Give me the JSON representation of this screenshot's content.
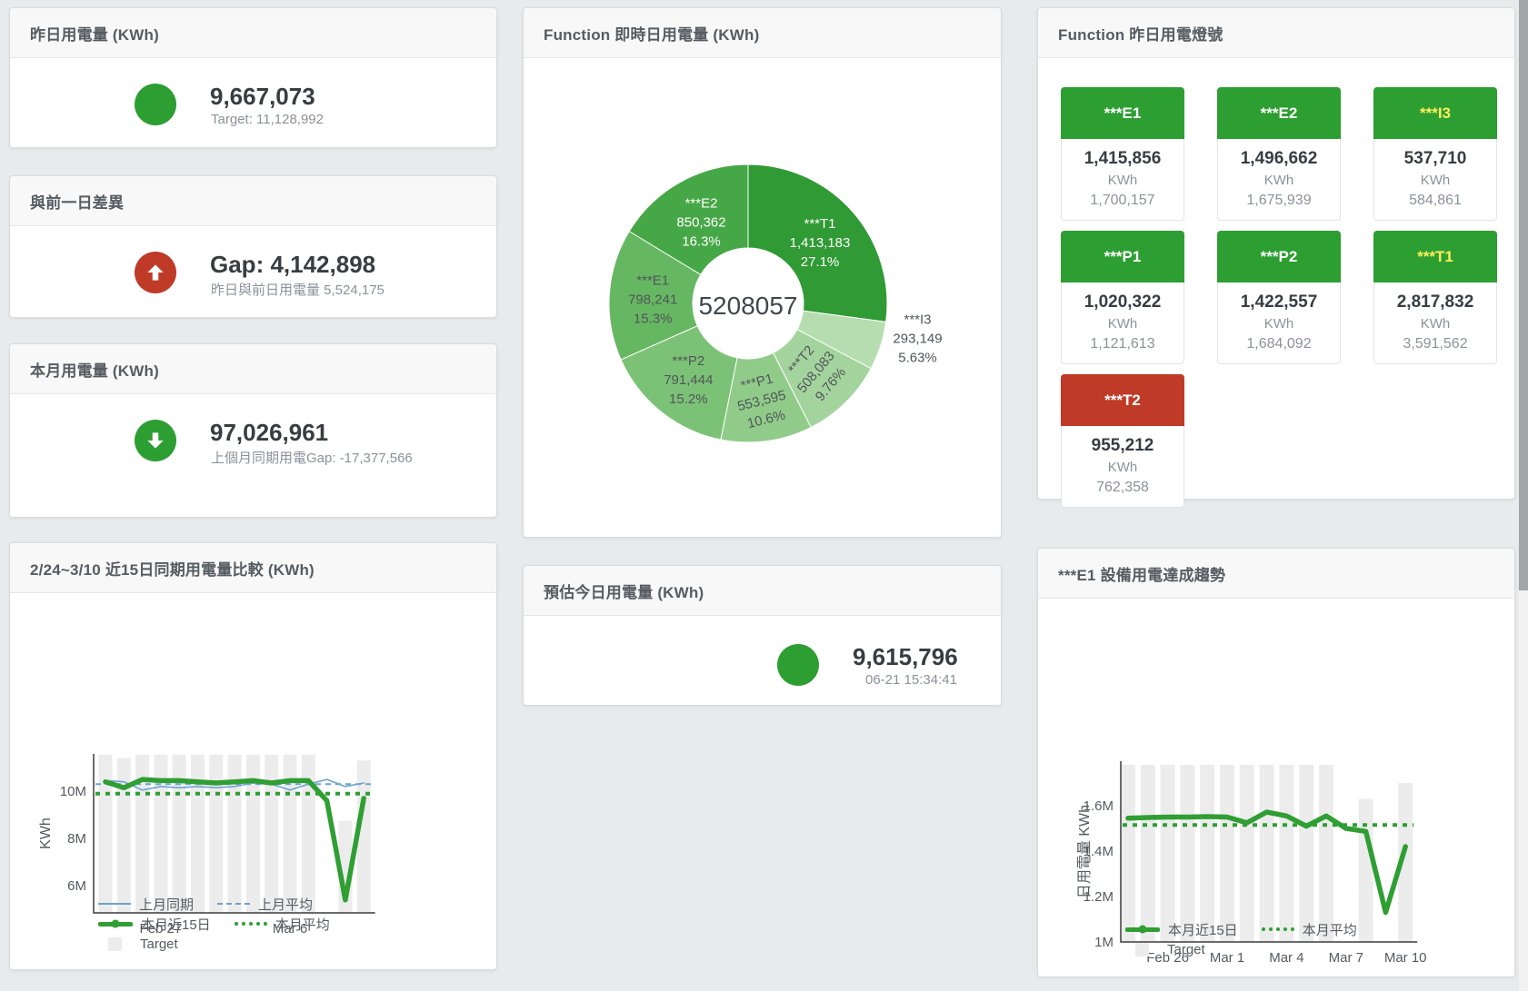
{
  "colors": {
    "green": "#2d9e32",
    "red": "#bf3a27",
    "yellow_label": "#ffef5a",
    "bar": "#ececec",
    "blue_line": "#6da3cc",
    "green_line": "#2f9e33"
  },
  "cards": {
    "yesterday": {
      "title": "昨日用電量 (KWh)",
      "value": "9,667,073",
      "subtitle": "Target: 11,128,992"
    },
    "day_gap": {
      "title": "與前一日差異",
      "value": "Gap: 4,142,898",
      "subtitle": "昨日與前日用電量 5,524,175"
    },
    "month": {
      "title": "本月用電量 (KWh)",
      "value": "97,026,961",
      "subtitle": "上個月同期用電Gap: -17,377,566"
    },
    "realtime_donut": {
      "title": "Function 即時日用電量 (KWh)"
    },
    "lights": {
      "title": "Function 昨日用電燈號",
      "unit": "KWh",
      "tiles": [
        {
          "name": "***E1",
          "value": "1,415,856",
          "target": "1,700,157",
          "status": "green",
          "label": "white"
        },
        {
          "name": "***E2",
          "value": "1,496,662",
          "target": "1,675,939",
          "status": "green",
          "label": "white"
        },
        {
          "name": "***I3",
          "value": "537,710",
          "target": "584,861",
          "status": "green",
          "label": "yellow"
        },
        {
          "name": "***P1",
          "value": "1,020,322",
          "target": "1,121,613",
          "status": "green",
          "label": "white"
        },
        {
          "name": "***P2",
          "value": "1,422,557",
          "target": "1,684,092",
          "status": "green",
          "label": "white"
        },
        {
          "name": "***T1",
          "value": "2,817,832",
          "target": "3,591,562",
          "status": "green",
          "label": "yellow"
        },
        {
          "name": "***T2",
          "value": "955,212",
          "target": "762,358",
          "status": "red",
          "label": "white"
        }
      ]
    },
    "compare": {
      "title": "2/24~3/10 近15日同期用電量比較 (KWh)"
    },
    "estimate": {
      "title": "預估今日用電量 (KWh)",
      "value": "9,615,796",
      "subtitle": "06-21 15:34:41"
    },
    "trend": {
      "title": "***E1 設備用電達成趨勢"
    }
  },
  "chart_data": [
    {
      "id": "donut",
      "type": "pie",
      "title": "Function 即時日用電量 (KWh)",
      "center_total": "5208057",
      "segments": [
        {
          "name": "***T1",
          "value": 1413183,
          "value_label": "1,413,183",
          "pct": 27.1,
          "pct_label": "27.1%",
          "color": "#309a34",
          "label_color": "#ffffff",
          "label_r": 105,
          "rot": 0,
          "outside": false
        },
        {
          "name": "***I3",
          "value": 293149,
          "value_label": "293,149",
          "pct": 5.63,
          "pct_label": "5.63%",
          "color": "#b6ddb0",
          "label_color": "#50555a",
          "label_r": 190,
          "rot": 0,
          "outside": true,
          "label_angle": 101
        },
        {
          "name": "***T2",
          "value": 508083,
          "value_label": "508,083",
          "pct": 9.76,
          "pct_label": "9.76%",
          "color": "#a4d49d",
          "label_color": "#50555a",
          "label_r": 104,
          "rot": -50,
          "outside": false
        },
        {
          "name": "***P1",
          "value": 553595,
          "value_label": "553,595",
          "pct": 10.6,
          "pct_label": "10.6%",
          "color": "#90cb89",
          "label_color": "#50555a",
          "label_r": 106,
          "rot": -14,
          "outside": false
        },
        {
          "name": "***P2",
          "value": 791444,
          "value_label": "791,444",
          "pct": 15.2,
          "pct_label": "15.2%",
          "color": "#7cc276",
          "label_color": "#50555a",
          "label_r": 105,
          "rot": 0,
          "outside": false
        },
        {
          "name": "***E1",
          "value": 798241,
          "value_label": "798,241",
          "pct": 15.3,
          "pct_label": "15.3%",
          "color": "#66b761",
          "label_color": "#50555a",
          "label_r": 105,
          "rot": 0,
          "outside": false
        },
        {
          "name": "***E2",
          "value": 850362,
          "value_label": "850,362",
          "pct": 16.3,
          "pct_label": "16.3%",
          "color": "#46a746",
          "label_color": "#ffffff",
          "label_r": 105,
          "rot": 0,
          "outside": false
        }
      ]
    },
    {
      "id": "compare",
      "type": "line",
      "title": "2/24~3/10 近15日同期用電量比較 (KWh)",
      "ylabel": "KWh",
      "x_count": 15,
      "unit": "M",
      "xticks": [
        {
          "i": 3,
          "label": "Feb 27"
        },
        {
          "i": 10,
          "label": "Mar 6"
        }
      ],
      "yticks": [
        {
          "v": 6,
          "label": "6M"
        },
        {
          "v": 8,
          "label": "8M"
        },
        {
          "v": 10,
          "label": "10M"
        }
      ],
      "ylim": [
        4.85,
        11.6
      ],
      "target_bars": [
        11.55,
        11.4,
        11.55,
        11.55,
        11.55,
        11.55,
        11.55,
        11.55,
        11.55,
        11.55,
        11.55,
        11.55,
        0,
        8.75,
        11.3
      ],
      "series": [
        {
          "name": "上月同期",
          "style": "thin",
          "color": "#6da3cc",
          "values": [
            10.45,
            10.4,
            10.05,
            10.2,
            10.15,
            10.2,
            10.15,
            10.2,
            10.35,
            10.3,
            10.05,
            10.3,
            10.5,
            10.2,
            10.35
          ]
        },
        {
          "name": "本月近15日",
          "style": "thick",
          "color": "#2f9e33",
          "values": [
            10.4,
            10.15,
            10.5,
            10.45,
            10.45,
            10.4,
            10.35,
            10.4,
            10.45,
            10.35,
            10.45,
            10.45,
            9.6,
            5.4,
            9.7
          ]
        }
      ],
      "avg_lines": [
        {
          "name": "上月平均",
          "style": "dashed",
          "color": "#6da3cc",
          "value": 10.3
        },
        {
          "name": "本月平均",
          "style": "dotted",
          "color": "#2f9e33",
          "value": 9.9
        }
      ],
      "target_legend": "Target"
    },
    {
      "id": "trend",
      "type": "line",
      "title": "***E1 設備用電達成趨勢",
      "ylabel": "日用電量 KWh",
      "x_count": 15,
      "unit": "M",
      "xticks": [
        {
          "i": 2,
          "label": "Feb 26"
        },
        {
          "i": 5,
          "label": "Mar 1"
        },
        {
          "i": 8,
          "label": "Mar 4"
        },
        {
          "i": 11,
          "label": "Mar 7"
        },
        {
          "i": 14,
          "label": "Mar 10"
        }
      ],
      "yticks": [
        {
          "v": 1,
          "label": "1M"
        },
        {
          "v": 1.2,
          "label": "1.2M"
        },
        {
          "v": 1.4,
          "label": "1.4M"
        },
        {
          "v": 1.6,
          "label": "1.6M"
        }
      ],
      "ylim": [
        1.0,
        1.8
      ],
      "target_bars": [
        1.78,
        1.78,
        1.78,
        1.78,
        1.78,
        1.78,
        1.78,
        1.78,
        1.78,
        1.78,
        1.78,
        0,
        1.63,
        0,
        1.7
      ],
      "series": [
        {
          "name": "本月近15日",
          "style": "thick",
          "color": "#2f9e33",
          "values": [
            1.545,
            1.548,
            1.55,
            1.55,
            1.552,
            1.55,
            1.525,
            1.572,
            1.555,
            1.51,
            1.555,
            1.5,
            1.487,
            1.13,
            1.42
          ]
        }
      ],
      "avg_lines": [
        {
          "name": "本月平均",
          "style": "dotted",
          "color": "#2f9e33",
          "value": 1.515
        }
      ],
      "target_legend": "Target"
    }
  ]
}
